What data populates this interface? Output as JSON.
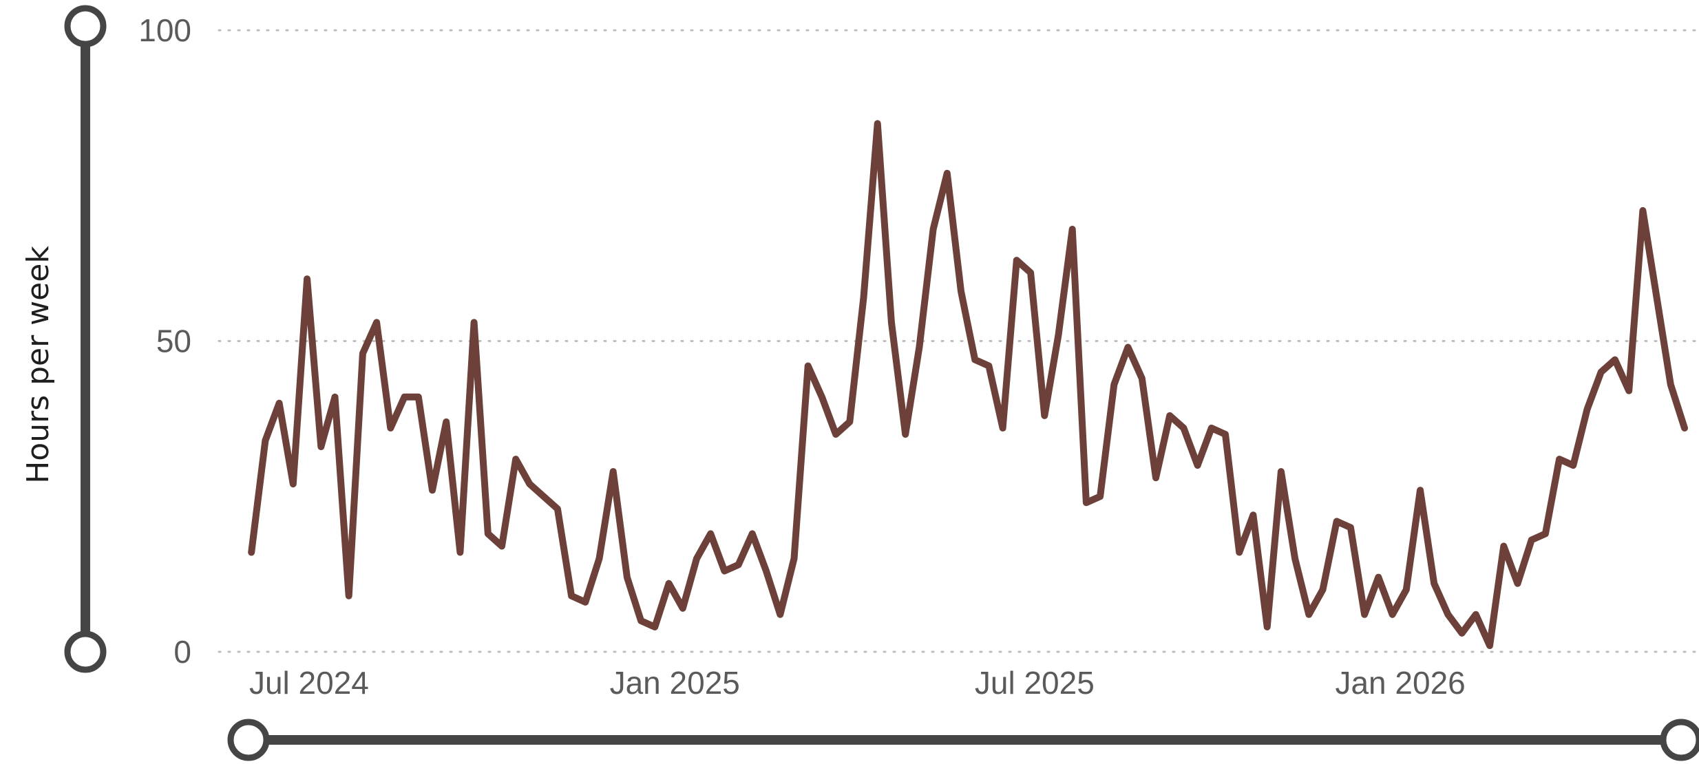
{
  "chart_data": {
    "type": "line",
    "title": "",
    "xlabel": "",
    "ylabel": "Hours per week",
    "ylim": [
      0,
      100
    ],
    "yticks": [
      0,
      50,
      100
    ],
    "xlim": [
      "2024-05-26",
      "2026-05-24"
    ],
    "xticks": [
      {
        "date": "2024-07-01",
        "label": "Jul 2024"
      },
      {
        "date": "2025-01-01",
        "label": "Jan 2025"
      },
      {
        "date": "2025-07-01",
        "label": "Jul 2025"
      },
      {
        "date": "2026-01-01",
        "label": "Jan 2026"
      }
    ],
    "grid": true,
    "legend": "none",
    "line_color": "#6d4139",
    "x": [
      "2024-06-02",
      "2024-06-09",
      "2024-06-16",
      "2024-06-23",
      "2024-06-30",
      "2024-07-07",
      "2024-07-14",
      "2024-07-21",
      "2024-07-28",
      "2024-08-04",
      "2024-08-11",
      "2024-08-18",
      "2024-08-25",
      "2024-09-01",
      "2024-09-08",
      "2024-09-15",
      "2024-09-22",
      "2024-09-29",
      "2024-10-06",
      "2024-10-13",
      "2024-10-20",
      "2024-10-27",
      "2024-11-03",
      "2024-11-10",
      "2024-11-17",
      "2024-11-24",
      "2024-12-01",
      "2024-12-08",
      "2024-12-15",
      "2024-12-22",
      "2024-12-29",
      "2025-01-05",
      "2025-01-12",
      "2025-01-19",
      "2025-01-26",
      "2025-02-02",
      "2025-02-09",
      "2025-02-16",
      "2025-02-23",
      "2025-03-02",
      "2025-03-09",
      "2025-03-16",
      "2025-03-23",
      "2025-03-30",
      "2025-04-06",
      "2025-04-13",
      "2025-04-20",
      "2025-04-27",
      "2025-05-04",
      "2025-05-11",
      "2025-05-18",
      "2025-05-25",
      "2025-06-01",
      "2025-06-08",
      "2025-06-15",
      "2025-06-22",
      "2025-06-29",
      "2025-07-06",
      "2025-07-13",
      "2025-07-20",
      "2025-07-27",
      "2025-08-03",
      "2025-08-10",
      "2025-08-17",
      "2025-08-24",
      "2025-08-31",
      "2025-09-07",
      "2025-09-14",
      "2025-09-21",
      "2025-09-28",
      "2025-10-05",
      "2025-10-12",
      "2025-10-19",
      "2025-10-26",
      "2025-11-02",
      "2025-11-09",
      "2025-11-16",
      "2025-11-23",
      "2025-11-30",
      "2025-12-07",
      "2025-12-14",
      "2025-12-21",
      "2025-12-28",
      "2026-01-04",
      "2026-01-11",
      "2026-01-18",
      "2026-01-25",
      "2026-02-01",
      "2026-02-08",
      "2026-02-15",
      "2026-02-22",
      "2026-03-01",
      "2026-03-08",
      "2026-03-15",
      "2026-03-22",
      "2026-03-29",
      "2026-04-05",
      "2026-04-12",
      "2026-04-19",
      "2026-04-26",
      "2026-05-03",
      "2026-05-10",
      "2026-05-17",
      "2026-05-24"
    ],
    "series": [
      {
        "name": "",
        "values": [
          16,
          34,
          40,
          27,
          60,
          33,
          41,
          9,
          48,
          53,
          36,
          41,
          41,
          26,
          37,
          16,
          53,
          19,
          17,
          31,
          27,
          25,
          23,
          9,
          8,
          15,
          29,
          12,
          5,
          4,
          11,
          7,
          15,
          19,
          13,
          14,
          19,
          13,
          6,
          15,
          46,
          41,
          35,
          37,
          57,
          85,
          53,
          35,
          49,
          68,
          77,
          58,
          47,
          46,
          36,
          63,
          61,
          38,
          51,
          68,
          24,
          25,
          43,
          49,
          44,
          28,
          38,
          36,
          30,
          36,
          35,
          16,
          22,
          4,
          29,
          15,
          6,
          10,
          21,
          20,
          6,
          12,
          6,
          10,
          26,
          11,
          6,
          3,
          6,
          1,
          17,
          11,
          18,
          19,
          31,
          30,
          39,
          45,
          47,
          42,
          71,
          57,
          43,
          36
        ]
      }
    ]
  }
}
